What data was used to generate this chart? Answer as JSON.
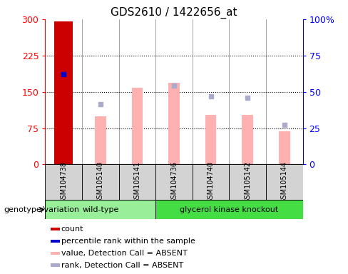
{
  "title": "GDS2610 / 1422656_at",
  "samples": [
    "GSM104738",
    "GSM105140",
    "GSM105141",
    "GSM104736",
    "GSM104740",
    "GSM105142",
    "GSM105144"
  ],
  "count_values": [
    295,
    null,
    null,
    null,
    null,
    null,
    null
  ],
  "percentile_rank_values": [
    62,
    null,
    null,
    null,
    null,
    null,
    null
  ],
  "absent_value": [
    null,
    100,
    158,
    168,
    103,
    103,
    68
  ],
  "absent_rank_left": [
    null,
    125,
    null,
    162,
    140,
    137,
    82
  ],
  "left_ylim": [
    0,
    300
  ],
  "right_ylim": [
    0,
    100
  ],
  "left_yticks": [
    0,
    75,
    150,
    225,
    300
  ],
  "right_yticks": [
    0,
    25,
    50,
    75,
    100
  ],
  "right_yticklabels": [
    "0",
    "25",
    "50",
    "75",
    "100%"
  ],
  "bar_color_count": "#cc0000",
  "bar_color_absent_value": "#ffb0b0",
  "bar_color_absent_rank": "#aaaacc",
  "marker_color_percentile": "#0000cc",
  "wildtype_color": "#99ee99",
  "knockout_color": "#44dd44",
  "sample_box_color": "#d3d3d3",
  "legend_items": [
    {
      "color": "#cc0000",
      "label": "count"
    },
    {
      "color": "#0000cc",
      "label": "percentile rank within the sample"
    },
    {
      "color": "#ffb0b0",
      "label": "value, Detection Call = ABSENT"
    },
    {
      "color": "#aaaacc",
      "label": "rank, Detection Call = ABSENT"
    }
  ],
  "genotype_label": "genotype/variation",
  "wildtype_label": "wild-type",
  "knockout_label": "glycerol kinase knockout",
  "wildtype_indices": [
    0,
    1,
    2
  ],
  "knockout_indices": [
    3,
    4,
    5,
    6
  ]
}
